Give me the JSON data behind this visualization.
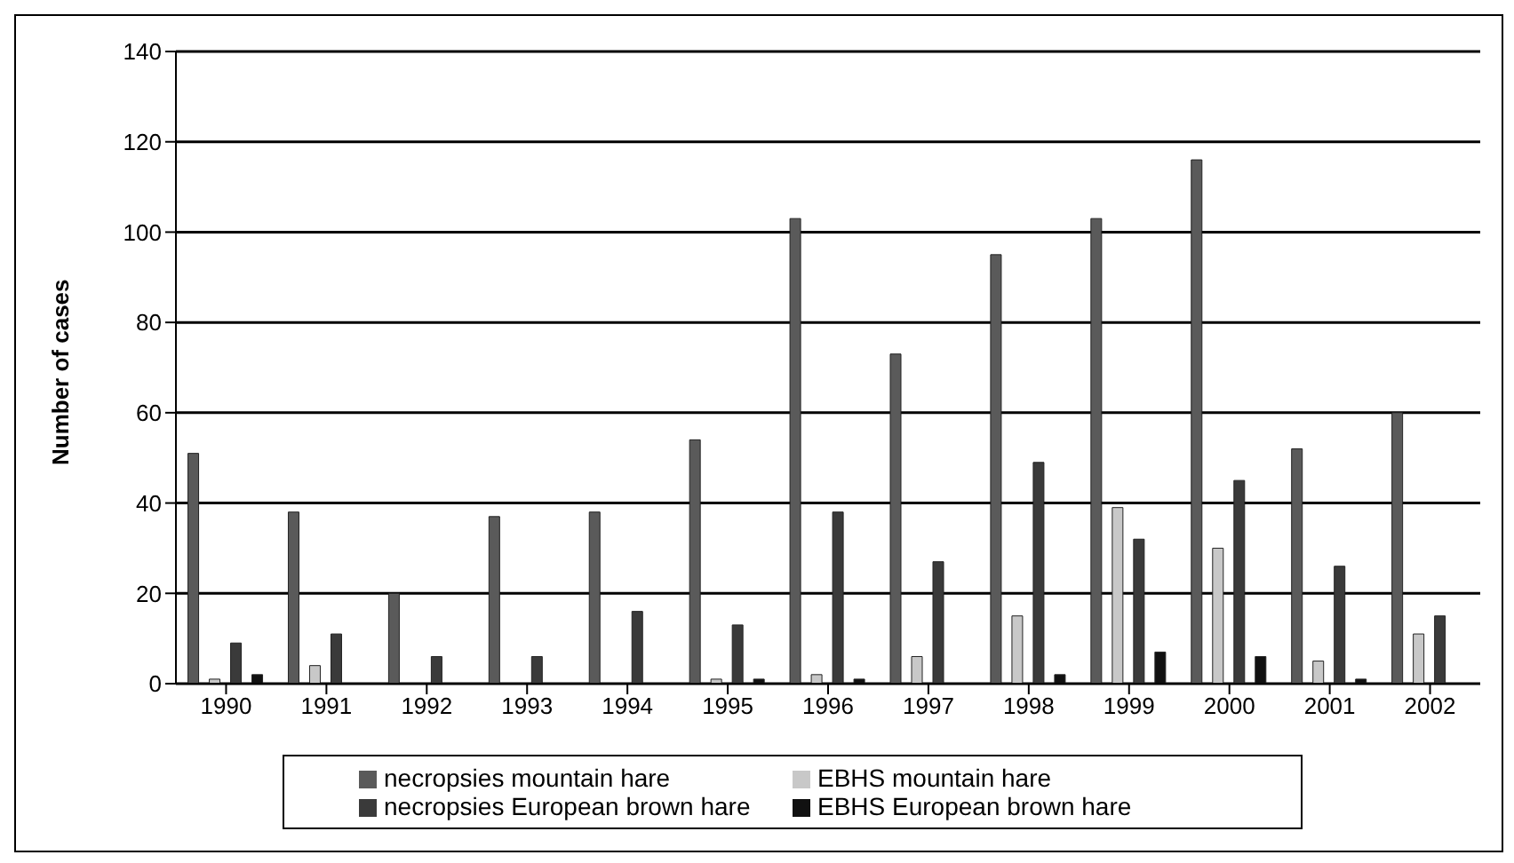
{
  "chart_data": {
    "type": "bar",
    "ylabel": "Number of cases",
    "categories": [
      "1990",
      "1991",
      "1992",
      "1993",
      "1994",
      "1995",
      "1996",
      "1997",
      "1998",
      "1999",
      "2000",
      "2001",
      "2002"
    ],
    "series": [
      {
        "name": "necropsies mountain hare",
        "color": "#5a5a5a",
        "values": [
          51,
          38,
          20,
          37,
          38,
          54,
          103,
          73,
          95,
          103,
          116,
          52,
          60
        ]
      },
      {
        "name": "EBHS mountain hare",
        "color": "#c8c8c8",
        "values": [
          1,
          4,
          0,
          0,
          0,
          1,
          2,
          6,
          15,
          39,
          30,
          5,
          11
        ]
      },
      {
        "name": "necropsies European brown hare",
        "color": "#3a3a3a",
        "values": [
          9,
          11,
          6,
          6,
          16,
          13,
          38,
          27,
          49,
          32,
          45,
          26,
          15
        ]
      },
      {
        "name": "EBHS European brown hare",
        "color": "#111111",
        "values": [
          2,
          0,
          0,
          0,
          0,
          1,
          1,
          0,
          2,
          7,
          6,
          1,
          0
        ]
      }
    ],
    "ylim": [
      0,
      140
    ],
    "yticks": [
      0,
      20,
      40,
      60,
      80,
      100,
      120,
      140
    ],
    "grid": "y",
    "legend": "bottom"
  }
}
